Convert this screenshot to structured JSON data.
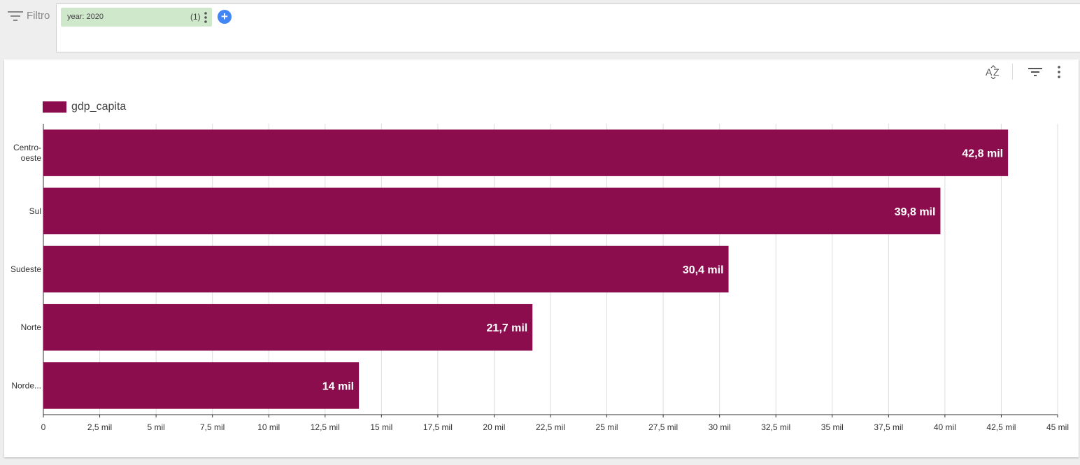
{
  "filter_bar": {
    "label": "Filtro",
    "chip": {
      "label": "year: 2020",
      "count": "(1)"
    },
    "add_label": "+"
  },
  "chart_data": {
    "type": "bar",
    "orientation": "horizontal",
    "title": "",
    "xlabel": "",
    "ylabel": "",
    "categories": [
      [
        "Centro-",
        "oeste"
      ],
      [
        "Sul"
      ],
      [
        "Sudeste"
      ],
      [
        "Norte"
      ],
      [
        "Norde..."
      ]
    ],
    "series": [
      {
        "name": "gdp_capita",
        "values": [
          42800,
          39800,
          30400,
          21700,
          14000
        ],
        "labels": [
          "42,8 mil",
          "39,8 mil",
          "30,4 mil",
          "21,7 mil",
          "14 mil"
        ]
      }
    ],
    "xlim": [
      0,
      45000
    ],
    "ticks": [
      0,
      2500,
      5000,
      7500,
      10000,
      12500,
      15000,
      17500,
      20000,
      22500,
      25000,
      27500,
      30000,
      32500,
      35000,
      37500,
      40000,
      42500,
      45000
    ],
    "tick_labels": [
      "0",
      "2,5 mil",
      "5 mil",
      "7,5 mil",
      "10 mil",
      "12,5 mil",
      "15 mil",
      "17,5 mil",
      "20 mil",
      "22,5 mil",
      "25 mil",
      "27,5 mil",
      "30 mil",
      "32,5 mil",
      "35 mil",
      "37,5 mil",
      "40 mil",
      "42,5 mil",
      "45 mil"
    ],
    "grid": true,
    "legend_position": "top-left",
    "bar_color": "#8b0d4e"
  },
  "colors": {
    "bar": "#8b0d4e",
    "chip": "#cfe8cc",
    "add_button": "#4285f4"
  },
  "icons": {
    "filter": "filter-icon",
    "sort": "sort-az-icon",
    "chart_filter": "filter-icon",
    "more": "more-vert-icon"
  }
}
